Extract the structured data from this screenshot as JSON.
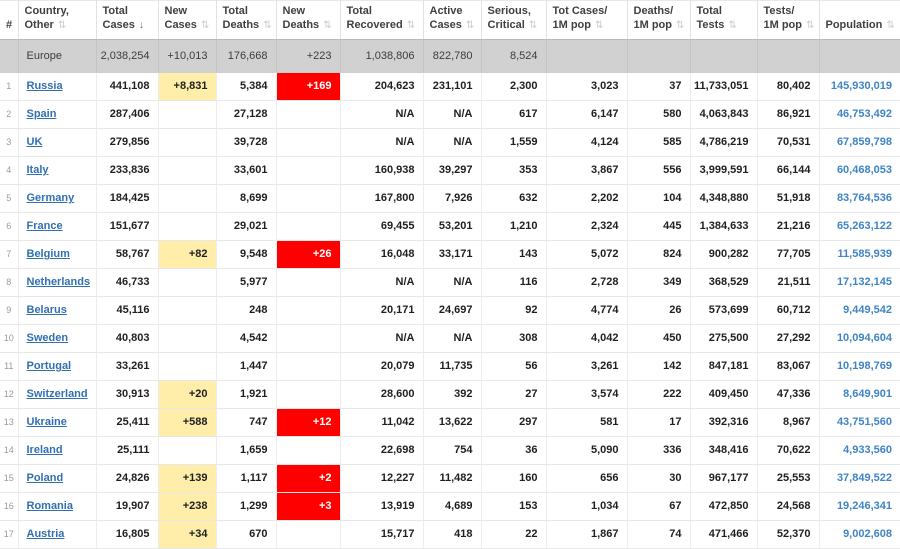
{
  "table": {
    "sort_icons": {
      "unsorted": "⇅",
      "sorted_desc": "↓"
    },
    "columns": [
      {
        "id": "row-number",
        "label": "#",
        "sort": "none"
      },
      {
        "id": "country",
        "label": "Country,\nOther",
        "sort": "unsorted"
      },
      {
        "id": "total-cases",
        "label": "Total\nCases",
        "sort": "sorted_desc"
      },
      {
        "id": "new-cases",
        "label": "New\nCases",
        "sort": "unsorted"
      },
      {
        "id": "total-deaths",
        "label": "Total\nDeaths",
        "sort": "unsorted"
      },
      {
        "id": "new-deaths",
        "label": "New\nDeaths",
        "sort": "unsorted"
      },
      {
        "id": "total-recovered",
        "label": "Total\nRecovered",
        "sort": "unsorted"
      },
      {
        "id": "active-cases",
        "label": "Active\nCases",
        "sort": "unsorted"
      },
      {
        "id": "serious-critical",
        "label": "Serious,\nCritical",
        "sort": "unsorted"
      },
      {
        "id": "cases-per-1m",
        "label": "Tot Cases/\n1M pop",
        "sort": "unsorted"
      },
      {
        "id": "deaths-per-1m",
        "label": "Deaths/\n1M pop",
        "sort": "unsorted"
      },
      {
        "id": "total-tests",
        "label": "Total\nTests",
        "sort": "unsorted"
      },
      {
        "id": "tests-per-1m",
        "label": "Tests/\n1M pop",
        "sort": "unsorted"
      },
      {
        "id": "population",
        "label": "Population",
        "sort": "unsorted"
      }
    ],
    "totals_row": [
      "",
      "Europe",
      "2,038,254",
      "+10,013",
      "176,668",
      "+223",
      "1,038,806",
      "822,780",
      "8,524",
      "",
      "",
      "",
      "",
      ""
    ],
    "rows": [
      [
        "1",
        "Russia",
        "441,108",
        "+8,831",
        "5,384",
        "+169",
        "204,623",
        "231,101",
        "2,300",
        "3,023",
        "37",
        "11,733,051",
        "80,402",
        "145,930,019"
      ],
      [
        "2",
        "Spain",
        "287,406",
        "",
        "27,128",
        "",
        "N/A",
        "N/A",
        "617",
        "6,147",
        "580",
        "4,063,843",
        "86,921",
        "46,753,492"
      ],
      [
        "3",
        "UK",
        "279,856",
        "",
        "39,728",
        "",
        "N/A",
        "N/A",
        "1,559",
        "4,124",
        "585",
        "4,786,219",
        "70,531",
        "67,859,798"
      ],
      [
        "4",
        "Italy",
        "233,836",
        "",
        "33,601",
        "",
        "160,938",
        "39,297",
        "353",
        "3,867",
        "556",
        "3,999,591",
        "66,144",
        "60,468,053"
      ],
      [
        "5",
        "Germany",
        "184,425",
        "",
        "8,699",
        "",
        "167,800",
        "7,926",
        "632",
        "2,202",
        "104",
        "4,348,880",
        "51,918",
        "83,764,536"
      ],
      [
        "6",
        "France",
        "151,677",
        "",
        "29,021",
        "",
        "69,455",
        "53,201",
        "1,210",
        "2,324",
        "445",
        "1,384,633",
        "21,216",
        "65,263,122"
      ],
      [
        "7",
        "Belgium",
        "58,767",
        "+82",
        "9,548",
        "+26",
        "16,048",
        "33,171",
        "143",
        "5,072",
        "824",
        "900,282",
        "77,705",
        "11,585,939"
      ],
      [
        "8",
        "Netherlands",
        "46,733",
        "",
        "5,977",
        "",
        "N/A",
        "N/A",
        "116",
        "2,728",
        "349",
        "368,529",
        "21,511",
        "17,132,145"
      ],
      [
        "9",
        "Belarus",
        "45,116",
        "",
        "248",
        "",
        "20,171",
        "24,697",
        "92",
        "4,774",
        "26",
        "573,699",
        "60,712",
        "9,449,542"
      ],
      [
        "10",
        "Sweden",
        "40,803",
        "",
        "4,542",
        "",
        "N/A",
        "N/A",
        "308",
        "4,042",
        "450",
        "275,500",
        "27,292",
        "10,094,604"
      ],
      [
        "11",
        "Portugal",
        "33,261",
        "",
        "1,447",
        "",
        "20,079",
        "11,735",
        "56",
        "3,261",
        "142",
        "847,181",
        "83,067",
        "10,198,769"
      ],
      [
        "12",
        "Switzerland",
        "30,913",
        "+20",
        "1,921",
        "",
        "28,600",
        "392",
        "27",
        "3,574",
        "222",
        "409,450",
        "47,336",
        "8,649,901"
      ],
      [
        "13",
        "Ukraine",
        "25,411",
        "+588",
        "747",
        "+12",
        "11,042",
        "13,622",
        "297",
        "581",
        "17",
        "392,316",
        "8,967",
        "43,751,560"
      ],
      [
        "14",
        "Ireland",
        "25,111",
        "",
        "1,659",
        "",
        "22,698",
        "754",
        "36",
        "5,090",
        "336",
        "348,416",
        "70,622",
        "4,933,560"
      ],
      [
        "15",
        "Poland",
        "24,826",
        "+139",
        "1,117",
        "+2",
        "12,227",
        "11,482",
        "160",
        "656",
        "30",
        "967,177",
        "25,553",
        "37,849,522"
      ],
      [
        "16",
        "Romania",
        "19,907",
        "+238",
        "1,299",
        "+3",
        "13,919",
        "4,689",
        "153",
        "1,034",
        "67",
        "472,850",
        "24,568",
        "19,246,341"
      ],
      [
        "17",
        "Austria",
        "16,805",
        "+34",
        "670",
        "",
        "15,717",
        "418",
        "22",
        "1,867",
        "74",
        "471,466",
        "52,370",
        "9,002,608"
      ]
    ]
  },
  "colors": {
    "country_link": "#3070b3",
    "population_text": "#4084c4",
    "new_cases_highlight": "#FFEEAA",
    "new_deaths_highlight": "#FF0000",
    "new_deaths_text": "#FFFFFF",
    "totals_row_bg": "#D1D1D1"
  }
}
